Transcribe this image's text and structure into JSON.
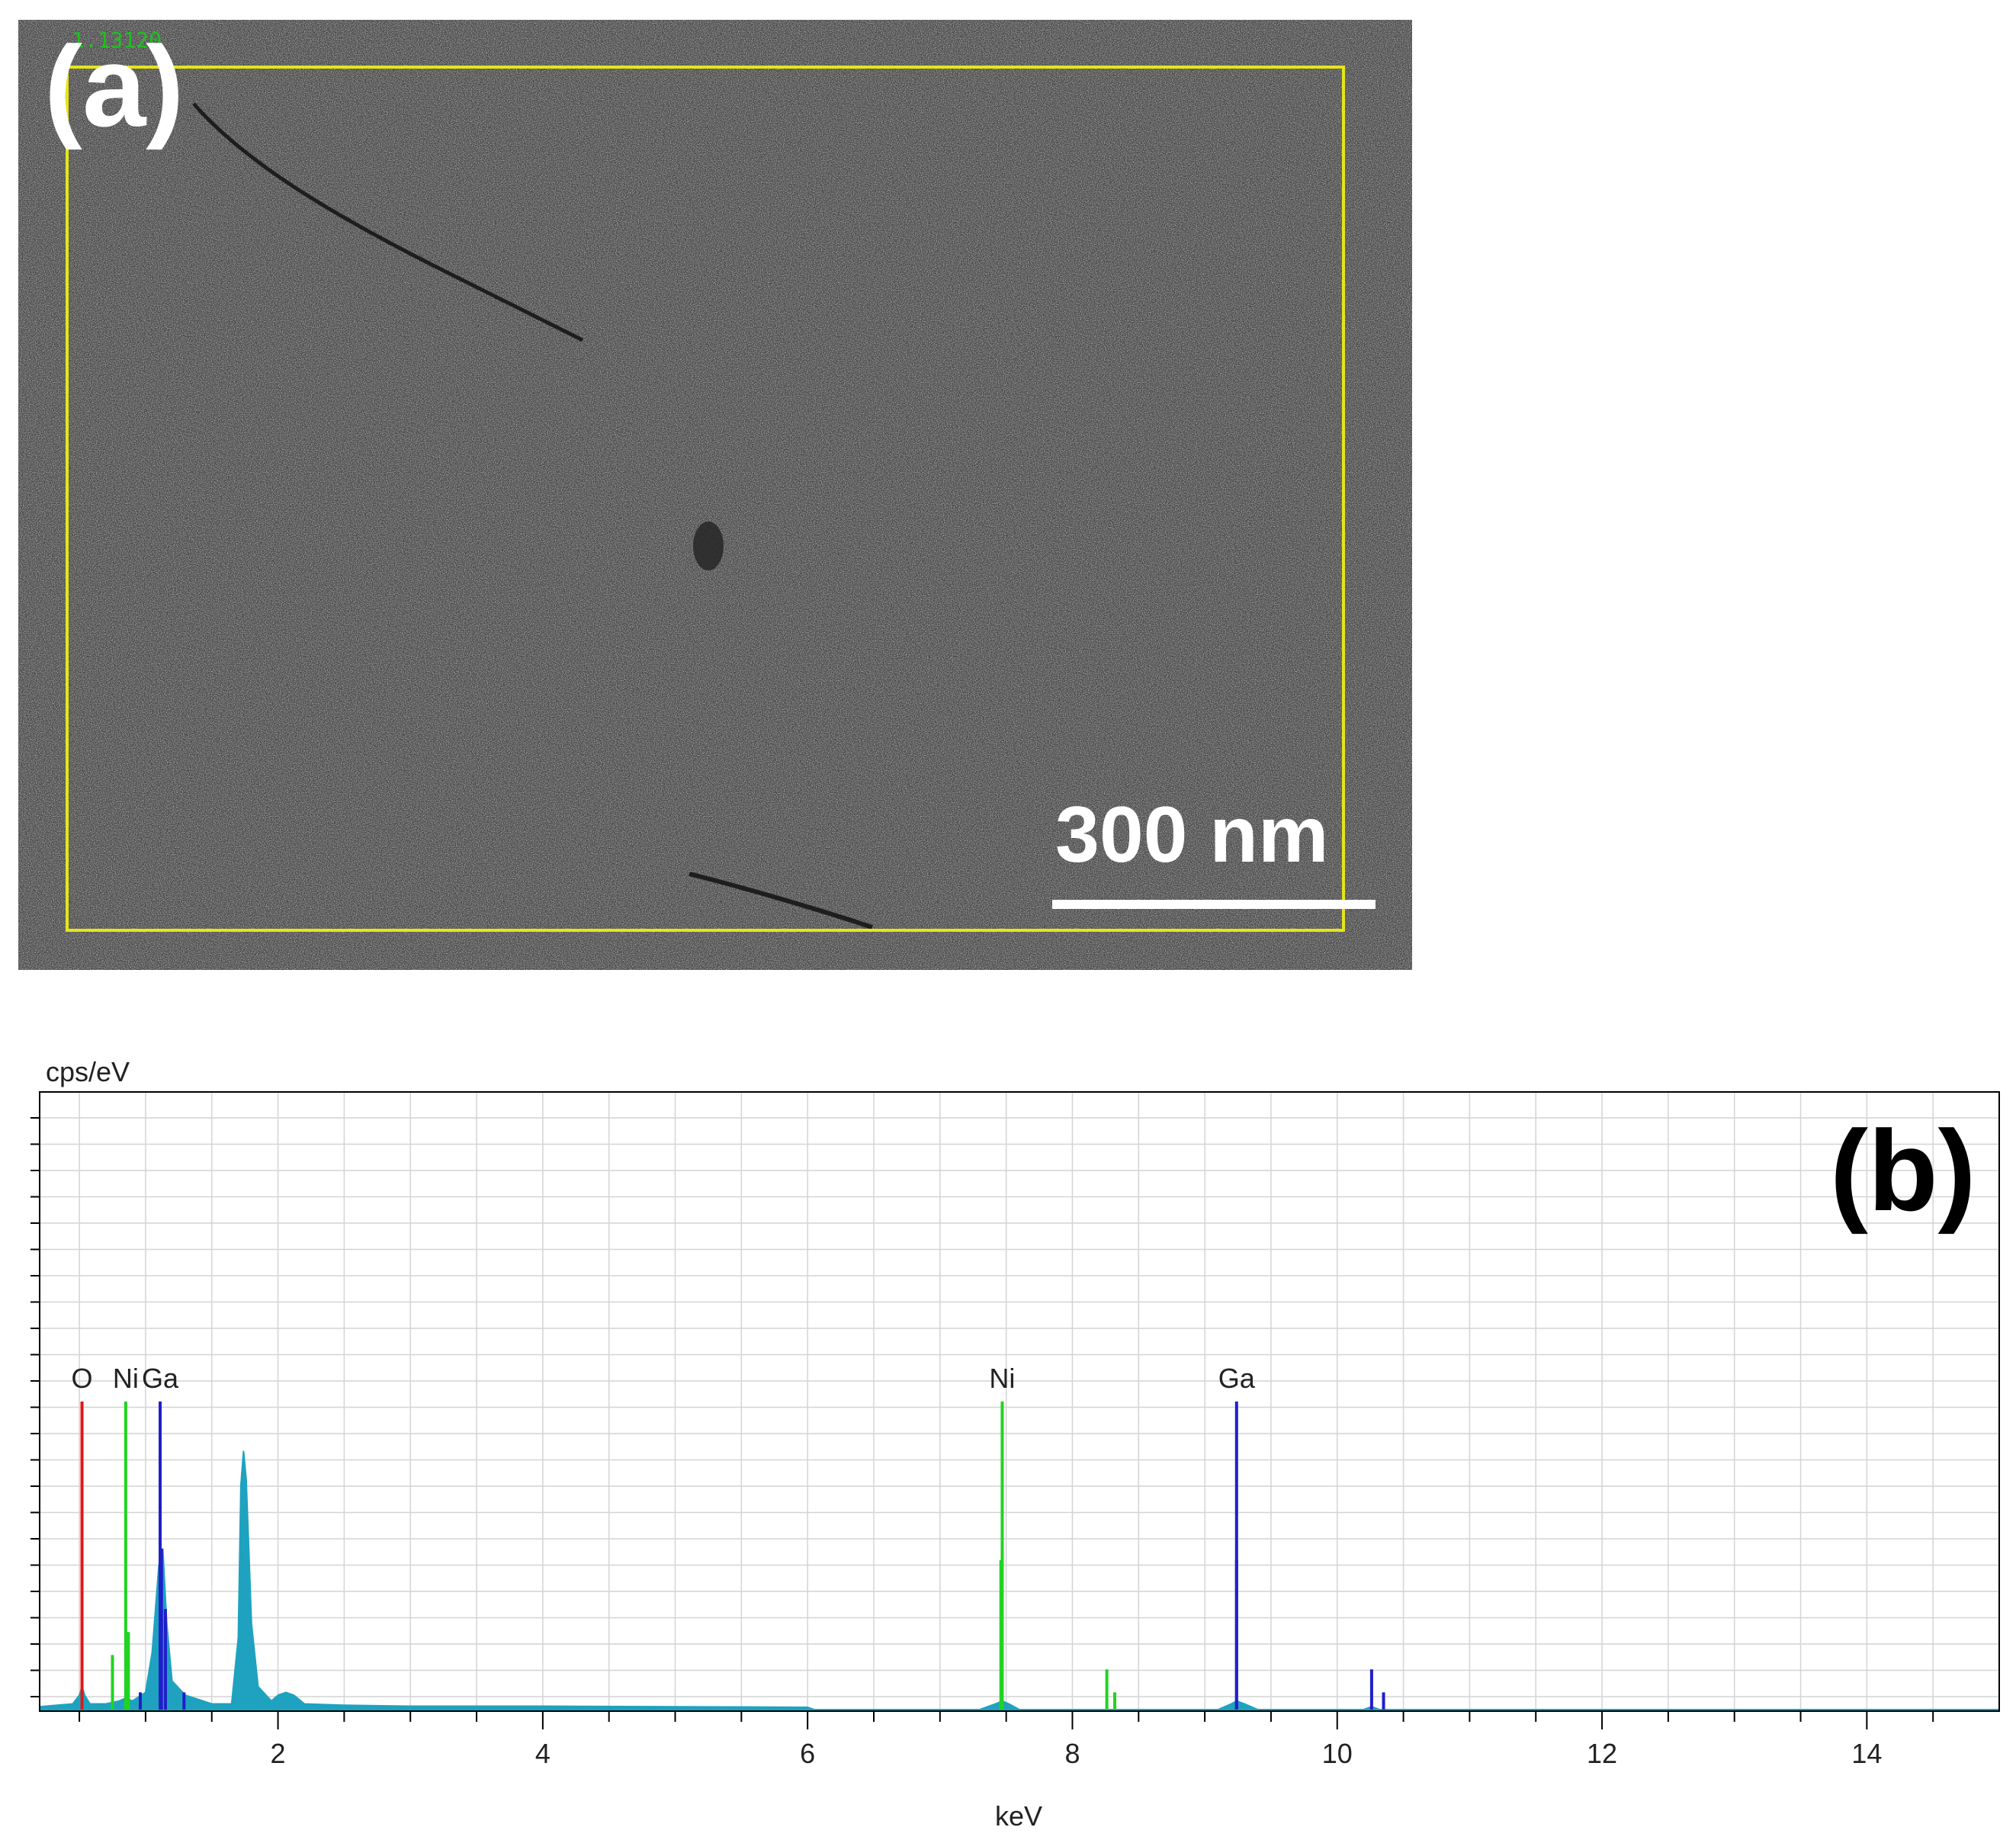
{
  "panel_a": {
    "label": "(a)",
    "image_id_text": "1.13120",
    "scale_bar_text": "300 nm",
    "description_colors": {
      "roi_box": "#e5e51a",
      "background": "#4a4a4a"
    }
  },
  "panel_b": {
    "label": "(b)"
  },
  "chart_data": {
    "type": "line",
    "title": "",
    "xlabel": "keV",
    "ylabel": "cps/eV",
    "xlim": [
      0.2,
      15.0
    ],
    "xticks": [
      2,
      4,
      6,
      8,
      10,
      12,
      14
    ],
    "grid": true,
    "spectrum_color": "#1fa2c0",
    "element_markers": [
      {
        "name": "O",
        "energy": 0.52,
        "color": "#e01818",
        "show_label": true
      },
      {
        "name": "Ni",
        "energy": 0.85,
        "color": "#21d321",
        "show_label": true
      },
      {
        "name": "Ga",
        "energy": 1.11,
        "color": "#1f1fc7",
        "show_label": true
      },
      {
        "name": "Ni",
        "energy": 7.47,
        "color": "#21d321",
        "show_label": true
      },
      {
        "name": "Ga",
        "energy": 9.24,
        "color": "#1f1fc7",
        "show_label": true
      }
    ],
    "minor_lines": [
      {
        "energy": 0.75,
        "height": 0.19,
        "color": "#21d321"
      },
      {
        "energy": 0.87,
        "height": 0.27,
        "color": "#21d321"
      },
      {
        "energy": 0.96,
        "height": 0.06,
        "color": "#1f1fc7"
      },
      {
        "energy": 1.12,
        "height": 0.56,
        "color": "#1f1fc7"
      },
      {
        "energy": 1.15,
        "height": 0.35,
        "color": "#1f1fc7"
      },
      {
        "energy": 1.29,
        "height": 0.06,
        "color": "#1f1fc7"
      },
      {
        "energy": 7.46,
        "height": 0.52,
        "color": "#21d321"
      },
      {
        "energy": 8.26,
        "height": 0.14,
        "color": "#21d321"
      },
      {
        "energy": 8.32,
        "height": 0.06,
        "color": "#21d321"
      },
      {
        "energy": 9.24,
        "height": 0.52,
        "color": "#1f1fc7"
      },
      {
        "energy": 10.26,
        "height": 0.14,
        "color": "#1f1fc7"
      },
      {
        "energy": 10.35,
        "height": 0.06,
        "color": "#1f1fc7"
      }
    ],
    "spectrum": {
      "x": [
        0.2,
        0.45,
        0.5,
        0.52,
        0.54,
        0.58,
        0.7,
        0.8,
        0.85,
        0.9,
        1.0,
        1.05,
        1.1,
        1.13,
        1.16,
        1.2,
        1.3,
        1.5,
        1.65,
        1.7,
        1.72,
        1.74,
        1.76,
        1.78,
        1.8,
        1.85,
        1.95,
        2.0,
        2.06,
        2.12,
        2.2,
        2.5,
        3.0,
        4.0,
        5.0,
        6.0,
        6.05,
        7.3,
        7.42,
        7.47,
        7.52,
        7.6,
        9.1,
        9.2,
        9.24,
        9.3,
        9.4,
        10.2,
        10.26,
        10.32,
        15.0
      ],
      "values": [
        0.01,
        0.02,
        0.05,
        0.08,
        0.05,
        0.02,
        0.02,
        0.03,
        0.04,
        0.03,
        0.06,
        0.2,
        0.5,
        0.56,
        0.3,
        0.1,
        0.05,
        0.02,
        0.02,
        0.25,
        0.78,
        0.9,
        0.8,
        0.55,
        0.3,
        0.08,
        0.03,
        0.05,
        0.06,
        0.05,
        0.02,
        0.015,
        0.012,
        0.012,
        0.01,
        0.008,
        0.0,
        0.0,
        0.02,
        0.03,
        0.02,
        0.0,
        0.0,
        0.02,
        0.03,
        0.02,
        0.0,
        0.0,
        0.01,
        0.0,
        0.0
      ],
      "ylim": [
        0,
        1.0
      ]
    }
  }
}
